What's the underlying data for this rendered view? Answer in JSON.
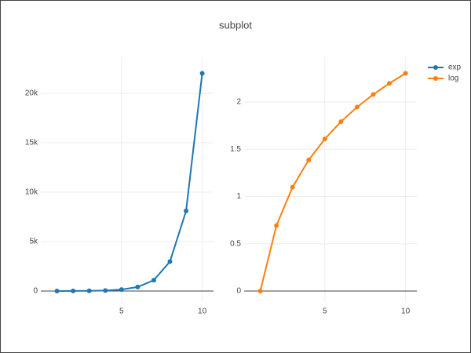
{
  "title": "subplot",
  "legend": "top-right",
  "chart_data": [
    {
      "type": "line",
      "x": [
        1,
        2,
        3,
        4,
        5,
        6,
        7,
        8,
        9,
        10
      ],
      "series": [
        {
          "name": "exp",
          "color": "#1f77b4",
          "values": [
            2.718,
            7.389,
            20.09,
            54.6,
            148.4,
            403.4,
            1096.6,
            2981,
            8103,
            22026
          ]
        }
      ],
      "xlim": [
        0,
        10.7
      ],
      "xticks": [
        5,
        10
      ],
      "ylim": [
        -1111,
        23651
      ],
      "yticks": [
        0,
        {
          "value": 5000,
          "label": "5k"
        },
        {
          "value": 10000,
          "label": "10k"
        },
        {
          "value": 15000,
          "label": "15k"
        },
        {
          "value": 20000,
          "label": "20k"
        }
      ],
      "grid": true
    },
    {
      "type": "line",
      "x": [
        1,
        2,
        3,
        4,
        5,
        6,
        7,
        8,
        9,
        10
      ],
      "series": [
        {
          "name": "log",
          "color": "#ff7f0e",
          "values": [
            0,
            0.693,
            1.099,
            1.386,
            1.609,
            1.792,
            1.946,
            2.079,
            2.197,
            2.303
          ]
        }
      ],
      "xlim": [
        0,
        10.7
      ],
      "xticks": [
        5,
        10
      ],
      "ylim": [
        -0.116,
        2.473
      ],
      "yticks": [
        0,
        0.5,
        1,
        1.5,
        2
      ],
      "grid": true
    }
  ]
}
